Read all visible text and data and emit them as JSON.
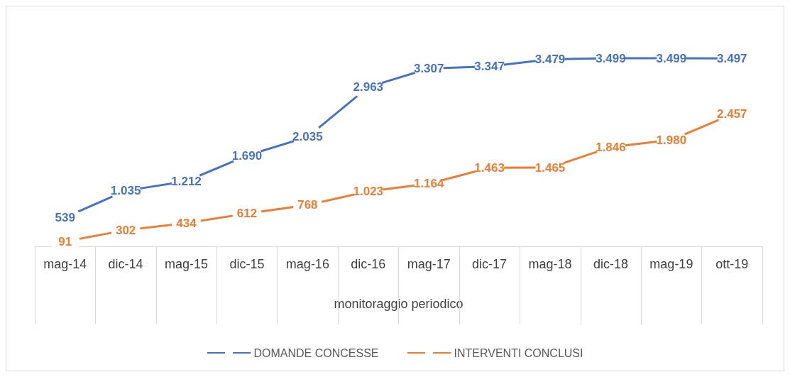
{
  "chart_data": {
    "type": "line",
    "xlabel": "monitoraggio periodico",
    "categories": [
      "mag-14",
      "dic-14",
      "mag-15",
      "dic-15",
      "mag-16",
      "dic-16",
      "mag-17",
      "dic-17",
      "mag-18",
      "dic-18",
      "mag-19",
      "ott-19"
    ],
    "series": [
      {
        "name": "DOMANDE CONCESSE",
        "color": "#4472c4",
        "values": [
          539,
          1035,
          1212,
          1690,
          2035,
          2963,
          3307,
          3347,
          3479,
          3499,
          3499,
          3497
        ],
        "value_labels": [
          "539",
          "1.035",
          "1.212",
          "1.690",
          "2.035",
          "2.963",
          "3.307",
          "3.347",
          "3.479",
          "3.499",
          "3.499",
          "3.497"
        ]
      },
      {
        "name": "INTERVENTI CONCLUSI",
        "color": "#ed7d31",
        "values": [
          91,
          302,
          434,
          612,
          768,
          1023,
          1164,
          1463,
          1465,
          1846,
          1980,
          2457
        ],
        "value_labels": [
          "91",
          "302",
          "434",
          "612",
          "768",
          "1.023",
          "1.164",
          "1.463",
          "1.465",
          "1.846",
          "1.980",
          "2.457"
        ]
      }
    ],
    "marker": "circle",
    "legend": "bottom"
  }
}
